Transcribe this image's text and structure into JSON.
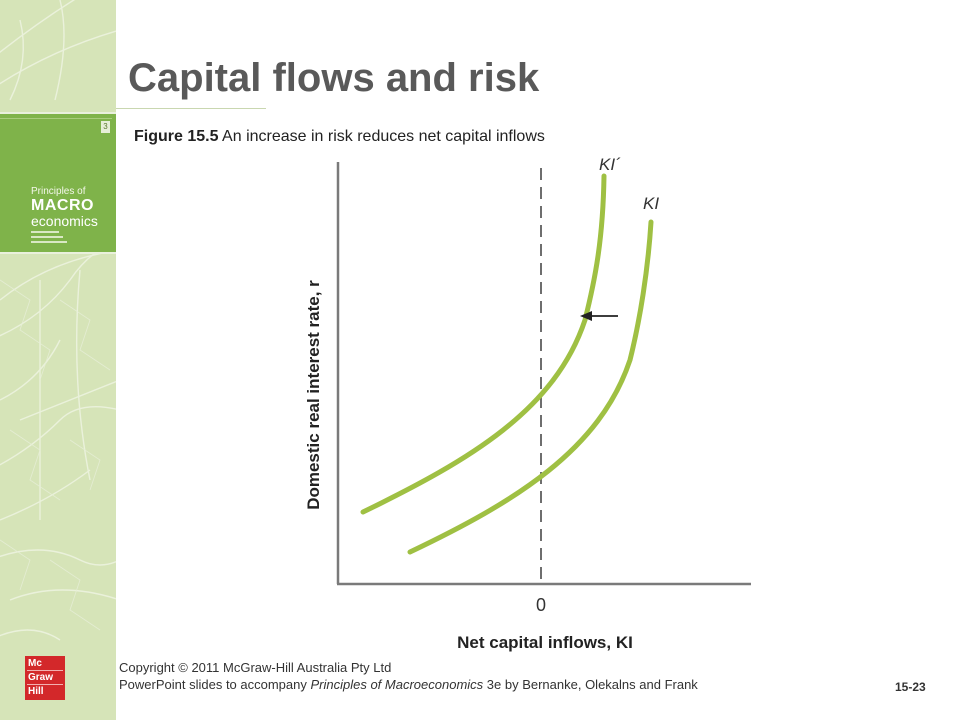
{
  "slide": {
    "title": "Capital flows and risk",
    "figure_label": "Figure 15.5",
    "figure_caption": "An increase in risk reduces net capital inflows",
    "page_number": "15-23"
  },
  "book": {
    "line1": "Principles of",
    "line2": "MACRO",
    "line3": "economics",
    "edition": "3"
  },
  "diagram": {
    "y_axis_label": "Domestic real interest rate, r",
    "x_axis_label": "Net capital inflows, KI",
    "origin_label": "0",
    "curve_shifted_label": "KI´",
    "curve_original_label": "KI",
    "colors": {
      "curve": "#9fc043",
      "axis": "#7a7a7a",
      "dash": "#4a4a4a"
    }
  },
  "footer": {
    "copyright": "Copyright © 2011 McGraw-Hill Australia Pty Ltd",
    "slides_prefix": "PowerPoint slides to accompany ",
    "book_title": "Principles of Macroeconomics",
    "slides_suffix": " 3e by  Bernanke, Olekalns and Frank"
  },
  "logo": {
    "line1": "Mc",
    "line2": "Graw",
    "line3": "Hill"
  }
}
